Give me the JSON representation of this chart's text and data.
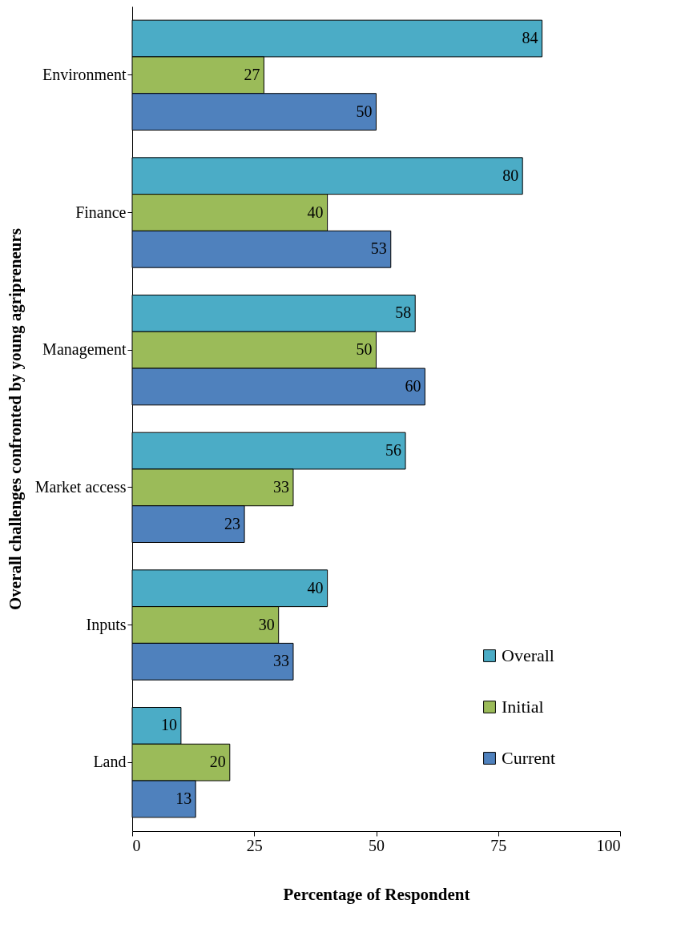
{
  "chart_data": {
    "type": "bar",
    "orientation": "horizontal",
    "xlabel": "Percentage of Respondent",
    "ylabel": "Overall challenges confronted by young agripreneurs",
    "categories": [
      "Environment",
      "Finance",
      "Management",
      "Market access",
      "Inputs",
      "Land"
    ],
    "series": [
      {
        "name": "Overall",
        "color": "#4bacc6",
        "values": [
          84,
          80,
          58,
          56,
          40,
          10
        ]
      },
      {
        "name": "Initial",
        "color": "#9bbb59",
        "values": [
          27,
          40,
          50,
          33,
          30,
          20
        ]
      },
      {
        "name": "Current",
        "color": "#4f81bd",
        "values": [
          50,
          53,
          60,
          23,
          33,
          13
        ]
      }
    ],
    "xlim": [
      0,
      100
    ],
    "xticks": [
      0,
      25,
      50,
      75,
      100
    ],
    "grid": false,
    "legend": "bottom right",
    "data_labels": true
  }
}
